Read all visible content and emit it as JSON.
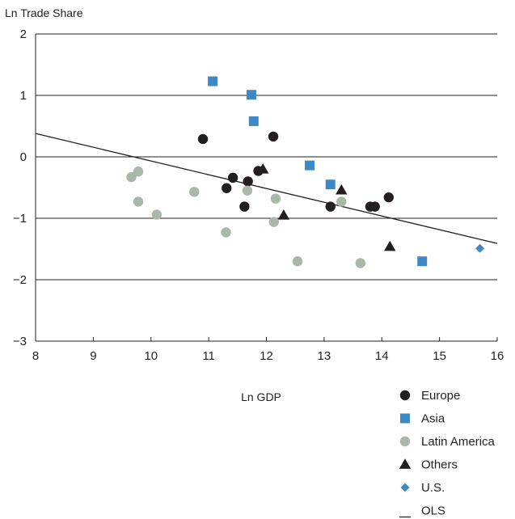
{
  "chart_data": {
    "type": "scatter",
    "ylabel": "Ln Trade Share",
    "xlabel": "Ln GDP",
    "xlim": [
      8,
      16
    ],
    "ylim": [
      -3,
      2
    ],
    "xticks": [
      8,
      9,
      10,
      11,
      12,
      13,
      14,
      15,
      16
    ],
    "yticks": [
      2,
      1,
      0,
      -1,
      -2,
      -3
    ],
    "ytick_labels": [
      "2",
      "1",
      "0",
      "−1",
      "−2",
      "−3"
    ],
    "grid": "horizontal",
    "legend_position": "bottom-right",
    "series": [
      {
        "name": "Europe",
        "marker": "circle",
        "color": "#231f20",
        "points": [
          {
            "x": 10.9,
            "y": 0.29
          },
          {
            "x": 12.12,
            "y": 0.33
          },
          {
            "x": 11.42,
            "y": -0.34
          },
          {
            "x": 11.31,
            "y": -0.51
          },
          {
            "x": 11.68,
            "y": -0.4
          },
          {
            "x": 11.86,
            "y": -0.23
          },
          {
            "x": 11.62,
            "y": -0.81
          },
          {
            "x": 13.11,
            "y": -0.81
          },
          {
            "x": 13.8,
            "y": -0.81
          },
          {
            "x": 13.88,
            "y": -0.81
          },
          {
            "x": 14.12,
            "y": -0.66
          }
        ]
      },
      {
        "name": "Asia",
        "marker": "square",
        "color": "#3e89c4",
        "points": [
          {
            "x": 11.07,
            "y": 1.23
          },
          {
            "x": 11.74,
            "y": 1.01
          },
          {
            "x": 11.78,
            "y": 0.58
          },
          {
            "x": 12.75,
            "y": -0.14
          },
          {
            "x": 13.11,
            "y": -0.45
          },
          {
            "x": 14.7,
            "y": -1.7
          }
        ]
      },
      {
        "name": "Latin America",
        "marker": "circle",
        "color": "#a9b8a9",
        "points": [
          {
            "x": 9.66,
            "y": -0.33
          },
          {
            "x": 9.78,
            "y": -0.24
          },
          {
            "x": 9.78,
            "y": -0.73
          },
          {
            "x": 10.1,
            "y": -0.94
          },
          {
            "x": 10.75,
            "y": -0.57
          },
          {
            "x": 11.67,
            "y": -0.55
          },
          {
            "x": 12.16,
            "y": -0.68
          },
          {
            "x": 12.13,
            "y": -1.06
          },
          {
            "x": 11.3,
            "y": -1.23
          },
          {
            "x": 12.54,
            "y": -1.7
          },
          {
            "x": 13.3,
            "y": -0.73
          },
          {
            "x": 13.63,
            "y": -1.73
          }
        ]
      },
      {
        "name": "Others",
        "marker": "triangle",
        "color": "#231f20",
        "points": [
          {
            "x": 11.94,
            "y": -0.2
          },
          {
            "x": 12.3,
            "y": -0.95
          },
          {
            "x": 13.3,
            "y": -0.54
          },
          {
            "x": 14.14,
            "y": -1.46
          }
        ]
      },
      {
        "name": "U.S.",
        "marker": "diamond",
        "color": "#3e89c4",
        "points": [
          {
            "x": 15.7,
            "y": -1.49
          }
        ]
      },
      {
        "name": "OLS",
        "marker": "line",
        "color": "#231f20",
        "points": [
          {
            "x": 8,
            "y": 0.38
          },
          {
            "x": 16,
            "y": -1.41
          }
        ]
      }
    ]
  }
}
